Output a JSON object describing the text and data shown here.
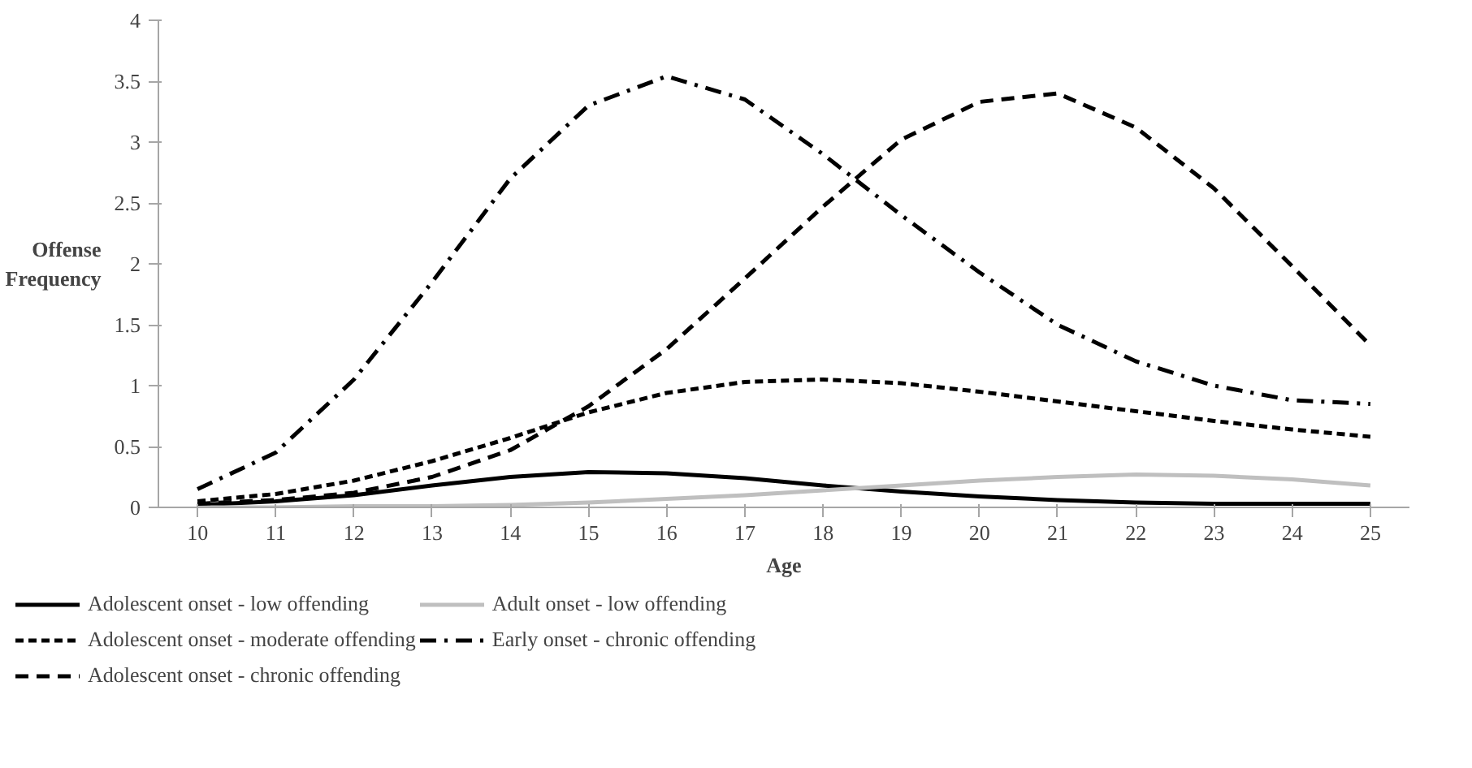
{
  "chart_data": {
    "type": "line",
    "xlabel": "Age",
    "ylabel": "Offense Frequency",
    "categories": [
      "10",
      "11",
      "12",
      "13",
      "14",
      "15",
      "16",
      "17",
      "18",
      "19",
      "20",
      "21",
      "22",
      "23",
      "24",
      "25"
    ],
    "ylim": [
      0,
      4
    ],
    "yticks": [
      0,
      0.5,
      1,
      1.5,
      2,
      2.5,
      3,
      3.5,
      4
    ],
    "grid": false,
    "legend": "bottom",
    "marker": "none",
    "series": [
      {
        "name": "Adolescent onset - low offending",
        "color": "#000000",
        "line_style": "solid",
        "values": [
          0.02,
          0.05,
          0.1,
          0.18,
          0.25,
          0.29,
          0.28,
          0.24,
          0.18,
          0.13,
          0.09,
          0.06,
          0.04,
          0.03,
          0.03,
          0.03
        ]
      },
      {
        "name": "Adult onset - low offending",
        "color": "#bfbfbf",
        "line_style": "solid",
        "values": [
          0,
          0,
          0.01,
          0.01,
          0.02,
          0.04,
          0.07,
          0.1,
          0.14,
          0.18,
          0.22,
          0.25,
          0.27,
          0.26,
          0.23,
          0.18
        ]
      },
      {
        "name": "Adolescent onset - moderate offending",
        "color": "#000000",
        "line_style": "dotted",
        "values": [
          0.05,
          0.11,
          0.22,
          0.38,
          0.57,
          0.78,
          0.94,
          1.03,
          1.05,
          1.02,
          0.95,
          0.87,
          0.79,
          0.71,
          0.64,
          0.58
        ]
      },
      {
        "name": "Early onset - chronic offending",
        "color": "#000000",
        "line_style": "dashdot",
        "values": [
          0.15,
          0.45,
          1.05,
          1.85,
          2.7,
          3.3,
          3.54,
          3.35,
          2.9,
          2.4,
          1.93,
          1.5,
          1.2,
          1.0,
          0.88,
          0.85
        ]
      },
      {
        "name": "Adolescent onset - chronic offending",
        "color": "#000000",
        "line_style": "dashed",
        "values": [
          0.03,
          0.06,
          0.12,
          0.25,
          0.47,
          0.83,
          1.3,
          1.88,
          2.47,
          3.02,
          3.33,
          3.4,
          3.12,
          2.62,
          1.98,
          1.33
        ]
      }
    ]
  }
}
